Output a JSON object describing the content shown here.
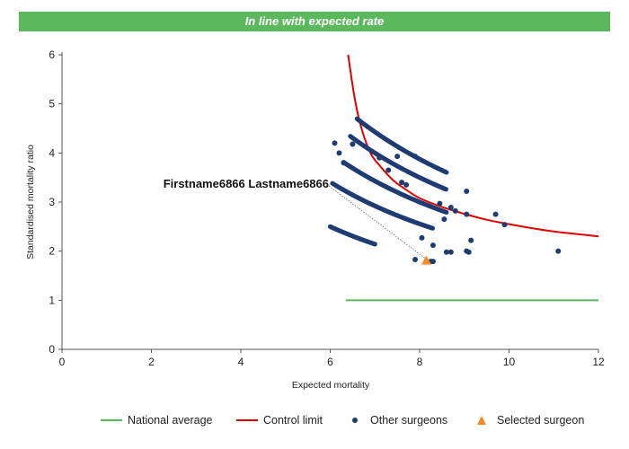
{
  "banner": {
    "text": "In line with expected rate"
  },
  "chart_data": {
    "type": "scatter",
    "title": "In line with expected rate",
    "xlabel": "Expected mortality",
    "ylabel": "Standardised mortality ratio",
    "xlim": [
      0,
      12
    ],
    "ylim": [
      0,
      6
    ],
    "xticks": [
      0,
      2,
      4,
      6,
      8,
      10,
      12
    ],
    "yticks": [
      0,
      1,
      2,
      3,
      4,
      5,
      6
    ],
    "grid": false,
    "legend_position": "bottom",
    "national_average": {
      "name": "National average",
      "color": "#5cb85c",
      "x": [
        6.35,
        12
      ],
      "y": [
        1,
        1
      ]
    },
    "control_limit": {
      "name": "Control limit",
      "color": "#e00000",
      "points": [
        [
          6.4,
          6.0
        ],
        [
          6.55,
          5.1
        ],
        [
          6.7,
          4.5
        ],
        [
          6.9,
          4.0
        ],
        [
          7.1,
          3.75
        ],
        [
          7.4,
          3.45
        ],
        [
          7.7,
          3.25
        ],
        [
          8.0,
          3.08
        ],
        [
          8.5,
          2.9
        ],
        [
          9.0,
          2.76
        ],
        [
          9.5,
          2.64
        ],
        [
          10.0,
          2.55
        ],
        [
          10.5,
          2.47
        ],
        [
          11.0,
          2.4
        ],
        [
          11.5,
          2.35
        ],
        [
          12.0,
          2.3
        ]
      ]
    },
    "other_surgeons": {
      "name": "Other surgeons",
      "color": "#1f3c72",
      "arcs": [
        {
          "x_start": 6.0,
          "x_end": 7.0,
          "k": 15.0
        },
        {
          "x_start": 6.05,
          "x_end": 8.3,
          "k": 20.45
        },
        {
          "x_start": 6.3,
          "x_end": 8.6,
          "k": 24.0
        },
        {
          "x_start": 6.45,
          "x_end": 8.6,
          "k": 28.0
        },
        {
          "x_start": 6.6,
          "x_end": 8.6,
          "k": 31.0
        }
      ],
      "points": [
        [
          6.1,
          4.2
        ],
        [
          6.5,
          4.18
        ],
        [
          6.2,
          4.0
        ],
        [
          6.3,
          3.8
        ],
        [
          7.1,
          3.9
        ],
        [
          7.5,
          3.93
        ],
        [
          7.9,
          3.93
        ],
        [
          7.3,
          3.65
        ],
        [
          7.6,
          3.4
        ],
        [
          7.7,
          3.35
        ],
        [
          8.45,
          2.97
        ],
        [
          8.55,
          2.65
        ],
        [
          8.7,
          2.89
        ],
        [
          8.8,
          2.82
        ],
        [
          9.05,
          3.22
        ],
        [
          9.05,
          2.75
        ],
        [
          9.7,
          2.75
        ],
        [
          9.9,
          2.54
        ],
        [
          8.6,
          1.98
        ],
        [
          8.7,
          1.98
        ],
        [
          9.05,
          2.0
        ],
        [
          9.1,
          1.98
        ],
        [
          9.15,
          2.22
        ],
        [
          8.3,
          2.12
        ],
        [
          8.05,
          2.27
        ],
        [
          8.25,
          1.79
        ],
        [
          8.3,
          1.79
        ],
        [
          7.9,
          1.83
        ],
        [
          11.1,
          2.0
        ]
      ]
    },
    "selected_surgeon": {
      "name": "Selected surgeon",
      "color": "#f28c28",
      "label": "Firstname6866 Lastname6866",
      "x": 8.15,
      "y": 1.8
    }
  },
  "legend": {
    "national_average": "National average",
    "control_limit": "Control limit",
    "other_surgeons": "Other surgeons",
    "selected_surgeon": "Selected surgeon"
  }
}
